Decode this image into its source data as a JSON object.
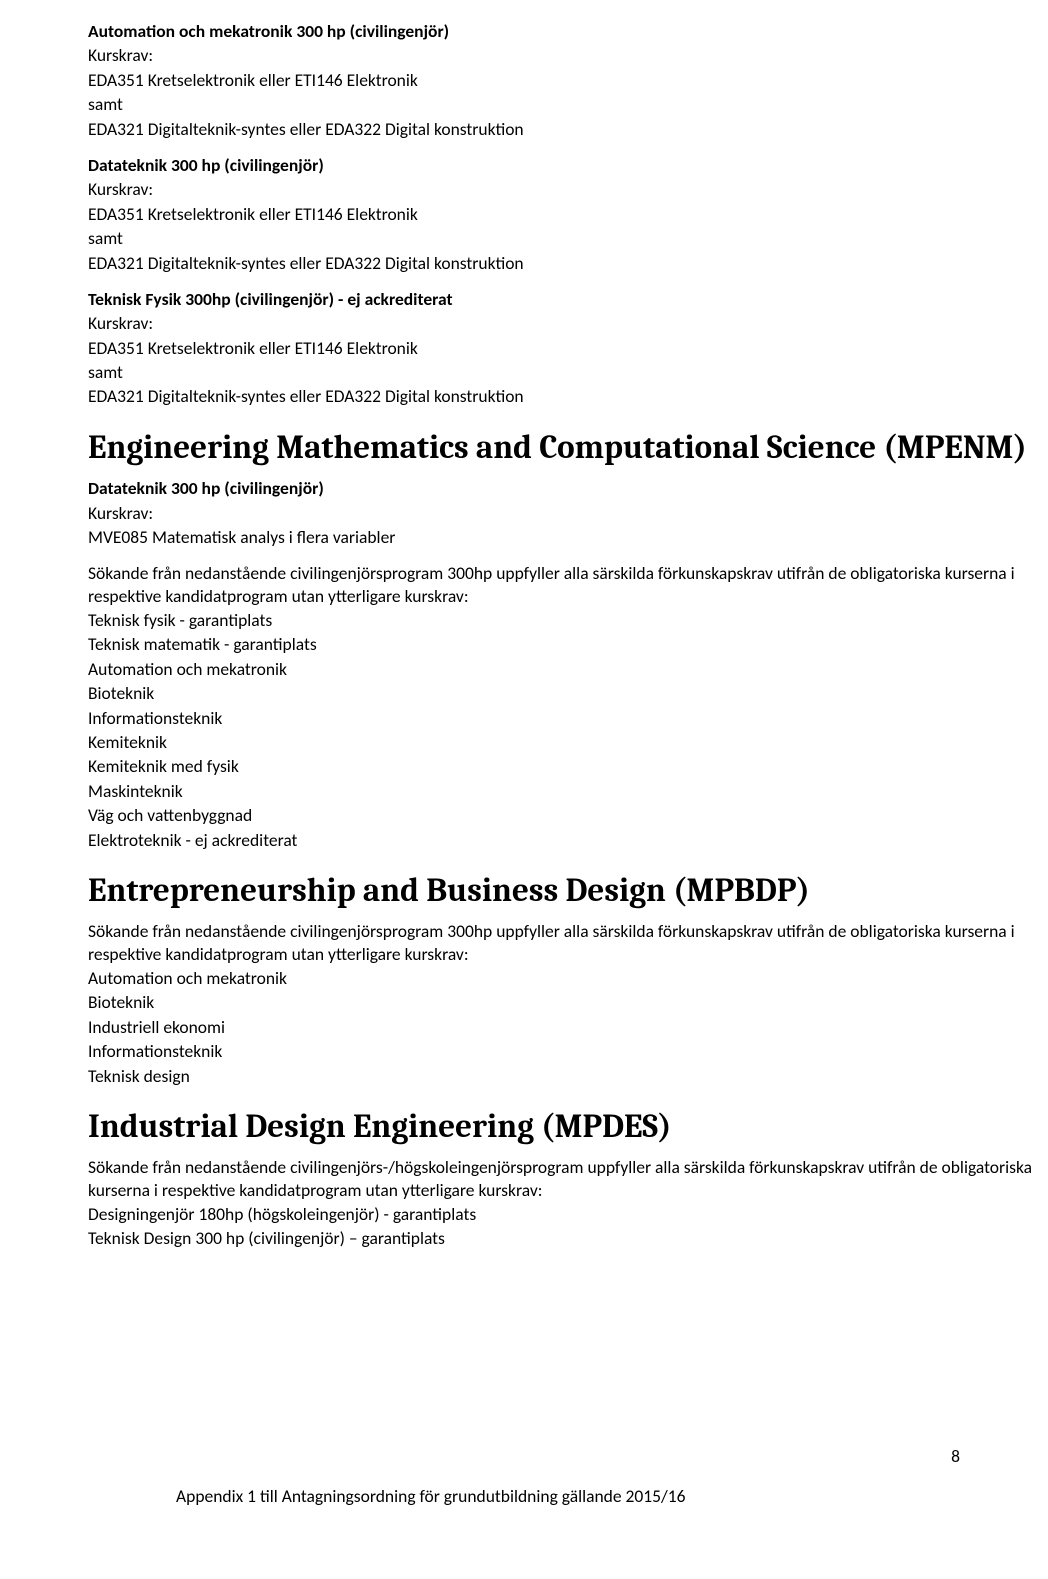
{
  "sections": [
    {
      "title": "Automation och mekatronik 300 hp (civilingenjör)",
      "lines": [
        "Kurskrav:",
        "EDA351 Kretselektronik eller ETI146 Elektronik",
        "samt",
        "EDA321 Digitalteknik-syntes eller EDA322 Digital konstruktion"
      ]
    },
    {
      "title": "Datateknik 300 hp (civilingenjör)",
      "lines": [
        "Kurskrav:",
        "EDA351 Kretselektronik eller ETI146 Elektronik",
        "samt",
        "EDA321 Digitalteknik-syntes eller EDA322 Digital konstruktion"
      ]
    },
    {
      "title": "Teknisk Fysik 300hp (civilingenjör) - ej ackrediterat",
      "lines": [
        "Kurskrav:",
        "EDA351 Kretselektronik eller ETI146 Elektronik",
        "samt",
        "EDA321 Digitalteknik-syntes eller EDA322 Digital konstruktion"
      ]
    }
  ],
  "h1a": "Engineering Mathematics and Computational Science (MPENM)",
  "mpenm_block1_title": "Datateknik 300 hp (civilingenjör)",
  "mpenm_block1_lines": [
    "Kurskrav:",
    "MVE085 Matematisk analys i flera variabler"
  ],
  "mpenm_para2": [
    "Sökande från nedanstående civilingenjörsprogram 300hp uppfyller alla särskilda förkunskapskrav utifrån de obligatoriska kurserna i respektive kandidatprogram utan ytterligare kurskrav:",
    "Teknisk fysik - garantiplats",
    "Teknisk matematik - garantiplats",
    "Automation och mekatronik",
    "Bioteknik",
    "Informationsteknik",
    "Kemiteknik",
    "Kemiteknik med fysik",
    "Maskinteknik",
    "Väg och vattenbyggnad",
    "Elektroteknik - ej ackrediterat"
  ],
  "h1b": "Entrepreneurship and Business Design (MPBDP)",
  "mpbdp_para": [
    "Sökande från nedanstående civilingenjörsprogram 300hp uppfyller alla särskilda förkunskapskrav utifrån de obligatoriska kurserna i respektive kandidatprogram utan ytterligare kurskrav:",
    "Automation och mekatronik",
    "Bioteknik",
    "Industriell ekonomi",
    "Informationsteknik",
    "Teknisk design"
  ],
  "h1c": "Industrial Design Engineering (MPDES)",
  "mpdes_para": [
    "Sökande från nedanstående civilingenjörs-/högskoleingenjörsprogram uppfyller alla särskilda förkunskapskrav utifrån de obligatoriska kurserna i respektive kandidatprogram utan ytterligare kurskrav:",
    "Designingenjör 180hp (högskoleingenjör) - garantiplats",
    "Teknisk Design 300 hp (civilingenjör) – garantiplats"
  ],
  "page_number": "8",
  "footer": "Appendix 1 till Antagningsordning för grundutbildning gällande 2015/16"
}
